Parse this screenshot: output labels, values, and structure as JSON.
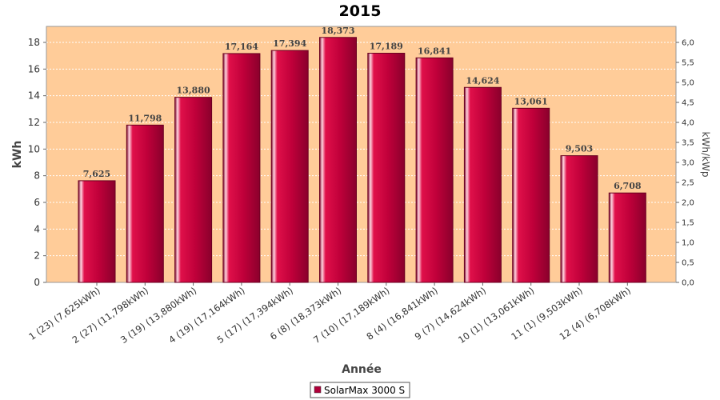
{
  "chart_data": {
    "type": "bar",
    "title": "2015",
    "xlabel": "Année",
    "ylabel": "kWh",
    "y2label": "kWh/kWp",
    "ylim": [
      0,
      19.2
    ],
    "y_ticks": [
      "0",
      "2",
      "4",
      "6",
      "8",
      "10",
      "12",
      "14",
      "16",
      "18"
    ],
    "y2lim": [
      0,
      6.4
    ],
    "y2_ticks": [
      "0,0",
      "0,5",
      "1,0",
      "1,5",
      "2,0",
      "2,5",
      "3,0",
      "3,5",
      "4,0",
      "4,5",
      "5,0",
      "5,5",
      "6,0"
    ],
    "grid": true,
    "categories": [
      "1 (23)  (7,625kWh)",
      "2 (27)  (11,798kWh)",
      "3 (19)  (13,880kWh)",
      "4 (19)  (17,164kWh)",
      "5 (17)  (17,394kWh)",
      "6 (8)  (18,373kWh)",
      "7 (10)  (17,189kWh)",
      "8 (4)  (16,841kWh)",
      "9 (7)  (14,624kWh)",
      "10 (1)  (13,061kWh)",
      "11 (1)  (9,503kWh)",
      "12 (4)  (6,708kWh)"
    ],
    "values": [
      7.625,
      11.798,
      13.88,
      17.164,
      17.394,
      18.373,
      17.189,
      16.841,
      14.624,
      13.061,
      9.503,
      6.708
    ],
    "value_labels": [
      "7,625",
      "11,798",
      "13,880",
      "17,164",
      "17,394",
      "18,373",
      "17,189",
      "16,841",
      "14,624",
      "13,061",
      "9,503",
      "6,708"
    ],
    "series": [
      {
        "name": "SolarMax 3000 S",
        "color": "#b0003a"
      }
    ],
    "legend_position": "bottom-center",
    "colors": {
      "plot_background": "#ffcc99",
      "bar": "#c8003d",
      "grid": "#ffffff"
    }
  }
}
